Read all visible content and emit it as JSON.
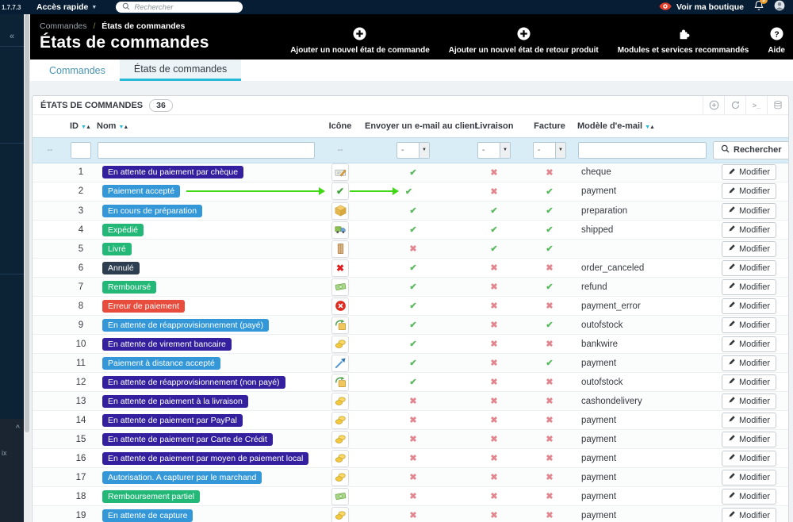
{
  "topbar": {
    "version": "1.7.7.3",
    "quick_access": "Accès rapide",
    "search_placeholder": "Rechercher",
    "view_shop": "Voir ma boutique",
    "notification_count": "9"
  },
  "sidebar": {
    "collapse_icon": "«",
    "flyout_chevron": "^",
    "flyout_label": "ix"
  },
  "header": {
    "breadcrumb_parent": "Commandes",
    "breadcrumb_sep": "/",
    "breadcrumb_current": "États de commandes",
    "title": "États de commandes",
    "actions": [
      {
        "label": "Ajouter un nouvel état de commande",
        "icon": "plus-circle"
      },
      {
        "label": "Ajouter un nouvel état de retour produit",
        "icon": "plus-circle"
      },
      {
        "label": "Modules et services recommandés",
        "icon": "puzzle"
      },
      {
        "label": "Aide",
        "icon": "help-circle"
      }
    ]
  },
  "tabs": [
    {
      "label": "Commandes",
      "active": false
    },
    {
      "label": "États de commandes",
      "active": true
    }
  ],
  "panel": {
    "title": "ÉTATS DE COMMANDES",
    "count": "36",
    "toolbar": [
      {
        "name": "add"
      },
      {
        "name": "refresh"
      },
      {
        "name": "sql-query"
      },
      {
        "name": "export"
      }
    ]
  },
  "table": {
    "columns": [
      {
        "label": ""
      },
      {
        "label": "ID",
        "sortable": true
      },
      {
        "label": "Nom",
        "sortable": true
      },
      {
        "label": "Icône",
        "center": true
      },
      {
        "label": "Envoyer un e-mail au client",
        "center": true
      },
      {
        "label": "Livraison",
        "center": true
      },
      {
        "label": "Facture",
        "center": true
      },
      {
        "label": "Modèle d'e-mail",
        "sortable": true
      },
      {
        "label": ""
      }
    ],
    "filters": {
      "empty": "--",
      "select_value": "-",
      "search_label": "Rechercher"
    },
    "edit_label": "Modifier",
    "colors": {
      "check": "#59B95C",
      "cross": "#E0868E",
      "arrow": "#41D816"
    },
    "rows": [
      {
        "id": "1",
        "name": "En attente du paiement par chèque",
        "color": "#34209E",
        "icon": "cheque",
        "email": true,
        "delivery": false,
        "invoice": false,
        "template": "cheque"
      },
      {
        "id": "2",
        "name": "Paiement accepté",
        "color": "#3498D8",
        "icon": "check",
        "email": true,
        "delivery": false,
        "invoice": true,
        "template": "payment",
        "arrows": true
      },
      {
        "id": "3",
        "name": "En cours de préparation",
        "color": "#3498D8",
        "icon": "box",
        "email": true,
        "delivery": true,
        "invoice": true,
        "template": "preparation"
      },
      {
        "id": "4",
        "name": "Expédié",
        "color": "#23B877",
        "icon": "truck",
        "email": true,
        "delivery": true,
        "invoice": true,
        "template": "shipped"
      },
      {
        "id": "5",
        "name": "Livré",
        "color": "#23B877",
        "icon": "parcel",
        "email": false,
        "delivery": true,
        "invoice": true,
        "template": ""
      },
      {
        "id": "6",
        "name": "Annulé",
        "color": "#2C3E50",
        "icon": "cross",
        "email": true,
        "delivery": false,
        "invoice": false,
        "template": "order_canceled"
      },
      {
        "id": "7",
        "name": "Remboursé",
        "color": "#23B877",
        "icon": "money",
        "email": true,
        "delivery": false,
        "invoice": true,
        "template": "refund"
      },
      {
        "id": "8",
        "name": "Erreur de paiement",
        "color": "#E74C3C",
        "icon": "error",
        "email": true,
        "delivery": false,
        "invoice": false,
        "template": "payment_error"
      },
      {
        "id": "9",
        "name": "En attente de réapprovisionnement (payé)",
        "color": "#3498D8",
        "icon": "restock",
        "email": true,
        "delivery": false,
        "invoice": true,
        "template": "outofstock"
      },
      {
        "id": "10",
        "name": "En attente de virement bancaire",
        "color": "#34209E",
        "icon": "coins",
        "email": true,
        "delivery": false,
        "invoice": false,
        "template": "bankwire"
      },
      {
        "id": "11",
        "name": "Paiement à distance accepté",
        "color": "#3498D8",
        "icon": "remote",
        "email": true,
        "delivery": false,
        "invoice": true,
        "template": "payment"
      },
      {
        "id": "12",
        "name": "En attente de réapprovisionnement (non payé)",
        "color": "#34209E",
        "icon": "restock",
        "email": true,
        "delivery": false,
        "invoice": false,
        "template": "outofstock"
      },
      {
        "id": "13",
        "name": "En attente de paiement à la livraison",
        "color": "#34209E",
        "icon": "coins",
        "email": false,
        "delivery": false,
        "invoice": false,
        "template": "cashondelivery"
      },
      {
        "id": "14",
        "name": "En attente de paiement par PayPal",
        "color": "#34209E",
        "icon": "coins",
        "email": false,
        "delivery": false,
        "invoice": false,
        "template": "payment"
      },
      {
        "id": "15",
        "name": "En attente de paiement par Carte de Crédit",
        "color": "#34209E",
        "icon": "coins",
        "email": false,
        "delivery": false,
        "invoice": false,
        "template": "payment"
      },
      {
        "id": "16",
        "name": "En attente de paiement par moyen de paiement local",
        "color": "#34209E",
        "icon": "coins",
        "email": false,
        "delivery": false,
        "invoice": false,
        "template": "payment"
      },
      {
        "id": "17",
        "name": "Autorisation. A capturer par le marchand",
        "color": "#3498D8",
        "icon": "coins",
        "email": false,
        "delivery": false,
        "invoice": false,
        "template": "payment"
      },
      {
        "id": "18",
        "name": "Remboursement partiel",
        "color": "#23B877",
        "icon": "money",
        "email": false,
        "delivery": false,
        "invoice": false,
        "template": "payment"
      },
      {
        "id": "19",
        "name": "En attente de capture",
        "color": "#3498D8",
        "icon": "coins",
        "email": false,
        "delivery": false,
        "invoice": false,
        "template": "payment"
      }
    ]
  }
}
